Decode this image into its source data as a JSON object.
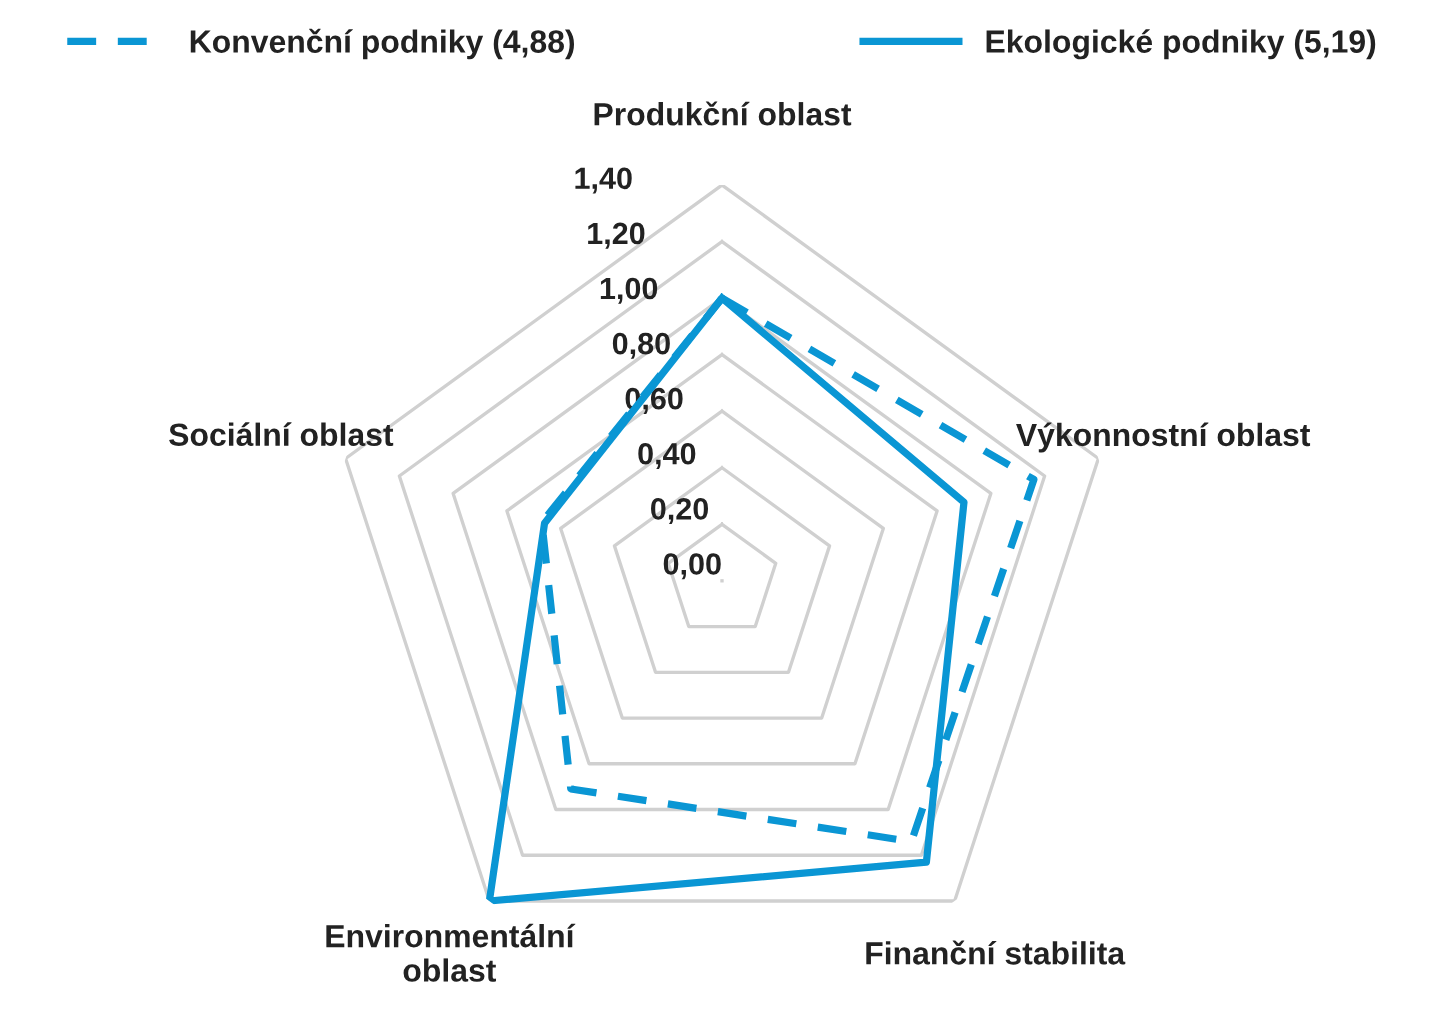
{
  "chart_data": {
    "type": "radar",
    "categories": [
      "Produkční oblast",
      "Výkonnostní oblast",
      "Finanční stabilita",
      "Environmentální\noblast",
      "Sociální oblast"
    ],
    "series": [
      {
        "name": "Konvenční podniky (4,88)",
        "color": "#0a96d4",
        "line_style": "dashed",
        "values": [
          1.0,
          1.16,
          1.14,
          0.91,
          0.67
        ]
      },
      {
        "name": "Ekologické podniky (5,19)",
        "color": "#0a96d4",
        "line_style": "solid",
        "values": [
          1.0,
          0.9,
          1.23,
          1.4,
          0.66
        ]
      }
    ],
    "ylim": [
      0,
      1.4
    ],
    "yticks": [
      {
        "value": 0,
        "label": "0,00"
      },
      {
        "value": 0.2,
        "label": "0,20"
      },
      {
        "value": 0.4,
        "label": "0,40"
      },
      {
        "value": 0.6,
        "label": "0,60"
      },
      {
        "value": 0.8,
        "label": "0,80"
      },
      {
        "value": 1.0,
        "label": "1,00"
      },
      {
        "value": 1.2,
        "label": "1,20"
      },
      {
        "value": 1.4,
        "label": "1,40"
      }
    ],
    "grid": true,
    "legend": "top",
    "marker": "none"
  }
}
